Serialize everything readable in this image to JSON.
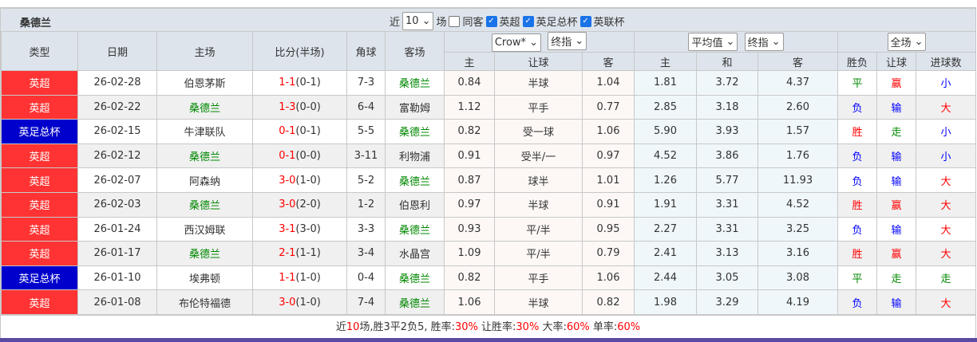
{
  "title": "桑德兰",
  "filters": {
    "recent_label": "近",
    "count": "10",
    "unit": "场",
    "same_away": "同客",
    "same_away_checked": false,
    "leagues": [
      {
        "label": "英超",
        "checked": true
      },
      {
        "label": "英足总杯",
        "checked": true
      },
      {
        "label": "英联杯",
        "checked": true
      }
    ]
  },
  "headers": {
    "type": "类型",
    "date": "日期",
    "home": "主场",
    "score": "比分(半场)",
    "corner": "角球",
    "away": "客场",
    "company": "Crow*",
    "odds_kind": "终指",
    "avg": "平均值",
    "avg_kind": "终指",
    "scope": "全场",
    "h_home": "主",
    "h_line": "让球",
    "h_away": "客",
    "e_home": "主",
    "e_draw": "和",
    "e_away": "客",
    "r_wdl": "胜负",
    "r_hc": "让球",
    "r_goals": "进球数"
  },
  "colors": {
    "英超": "#ff3333",
    "英足总杯": "#0000cc",
    "win": "#ff0000",
    "draw": "#008800",
    "loss": "#0000ff",
    "team": "#008800"
  },
  "rows": [
    {
      "league": "英超",
      "date": "26-02-28",
      "home": "伯恩茅斯",
      "score": "1-1",
      "half": "(0-1)",
      "corner": "7-3",
      "away": "桑德兰",
      "o1": "0.84",
      "line": "半球",
      "o2": "1.04",
      "e1": "1.81",
      "e2": "3.72",
      "e3": "4.37",
      "wdl": "平",
      "hc": "赢",
      "goals": "小"
    },
    {
      "league": "英超",
      "date": "26-02-22",
      "home": "桑德兰",
      "score": "1-3",
      "half": "(0-0)",
      "corner": "6-4",
      "away": "富勒姆",
      "o1": "1.12",
      "line": "平手",
      "o2": "0.77",
      "e1": "2.85",
      "e2": "3.18",
      "e3": "2.60",
      "wdl": "负",
      "hc": "输",
      "goals": "大"
    },
    {
      "league": "英足总杯",
      "date": "26-02-15",
      "home": "牛津联队",
      "score": "0-1",
      "half": "(0-1)",
      "corner": "5-5",
      "away": "桑德兰",
      "o1": "0.82",
      "line": "受一球",
      "o2": "1.06",
      "e1": "5.90",
      "e2": "3.93",
      "e3": "1.57",
      "wdl": "胜",
      "hc": "走",
      "goals": "小"
    },
    {
      "league": "英超",
      "date": "26-02-12",
      "home": "桑德兰",
      "score": "0-1",
      "half": "(0-0)",
      "corner": "3-11",
      "away": "利物浦",
      "o1": "0.91",
      "line": "受半/一",
      "o2": "0.97",
      "e1": "4.52",
      "e2": "3.86",
      "e3": "1.76",
      "wdl": "负",
      "hc": "输",
      "goals": "小"
    },
    {
      "league": "英超",
      "date": "26-02-07",
      "home": "阿森纳",
      "score": "3-0",
      "half": "(1-0)",
      "corner": "5-2",
      "away": "桑德兰",
      "o1": "0.87",
      "line": "球半",
      "o2": "1.01",
      "e1": "1.26",
      "e2": "5.77",
      "e3": "11.93",
      "wdl": "负",
      "hc": "输",
      "goals": "大"
    },
    {
      "league": "英超",
      "date": "26-02-03",
      "home": "桑德兰",
      "score": "3-0",
      "half": "(2-0)",
      "corner": "1-2",
      "away": "伯恩利",
      "o1": "0.97",
      "line": "半球",
      "o2": "0.91",
      "e1": "1.91",
      "e2": "3.31",
      "e3": "4.52",
      "wdl": "胜",
      "hc": "赢",
      "goals": "大"
    },
    {
      "league": "英超",
      "date": "26-01-24",
      "home": "西汉姆联",
      "score": "3-1",
      "half": "(3-0)",
      "corner": "3-3",
      "away": "桑德兰",
      "o1": "0.93",
      "line": "平/半",
      "o2": "0.95",
      "e1": "2.27",
      "e2": "3.31",
      "e3": "3.25",
      "wdl": "负",
      "hc": "输",
      "goals": "大"
    },
    {
      "league": "英超",
      "date": "26-01-17",
      "home": "桑德兰",
      "score": "2-1",
      "half": "(1-1)",
      "corner": "3-4",
      "away": "水晶宫",
      "o1": "1.09",
      "line": "平/半",
      "o2": "0.79",
      "e1": "2.41",
      "e2": "3.13",
      "e3": "3.16",
      "wdl": "胜",
      "hc": "赢",
      "goals": "大"
    },
    {
      "league": "英足总杯",
      "date": "26-01-10",
      "home": "埃弗顿",
      "score": "1-1",
      "half": "(1-0)",
      "corner": "0-4",
      "away": "桑德兰",
      "o1": "0.82",
      "line": "平手",
      "o2": "1.06",
      "e1": "2.44",
      "e2": "3.05",
      "e3": "3.08",
      "wdl": "平",
      "hc": "走",
      "goals": "走"
    },
    {
      "league": "英超",
      "date": "26-01-08",
      "home": "布伦特福德",
      "score": "3-0",
      "half": "(1-0)",
      "corner": "7-4",
      "away": "桑德兰",
      "o1": "1.06",
      "line": "半球",
      "o2": "0.82",
      "e1": "1.98",
      "e2": "3.29",
      "e3": "4.19",
      "wdl": "负",
      "hc": "输",
      "goals": "大"
    }
  ],
  "summary": {
    "p1": "近",
    "n": "10",
    "p2": "场,胜3平2负5, 胜率:",
    "win": "30%",
    "p3": " 让胜率:",
    "hcwin": "30%",
    "p4": " 大率:",
    "big": "60%",
    "p5": " 单率:",
    "odd": "60%"
  }
}
